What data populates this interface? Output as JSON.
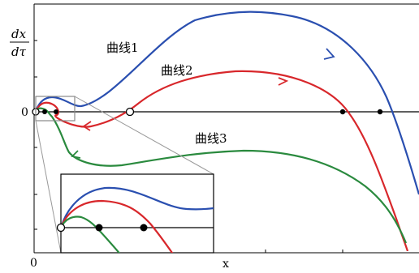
{
  "chart_data": {
    "type": "line",
    "ylabel": {
      "numerator": "dx",
      "denominator": "dτ"
    },
    "xlabel": "x",
    "y_zero_label": "0",
    "x_zero_label": "0",
    "series": [
      {
        "name": "曲线1",
        "color": "#2a4fb0"
      },
      {
        "name": "曲线2",
        "color": "#d8272b"
      },
      {
        "name": "曲线3",
        "color": "#2a8a3e"
      }
    ],
    "fixed_points": [
      {
        "kind": "open",
        "series": "曲线1/2/3",
        "note": "origin"
      },
      {
        "kind": "filled",
        "series": "曲线3"
      },
      {
        "kind": "filled",
        "series": "曲线3"
      },
      {
        "kind": "open",
        "series": "曲线2"
      },
      {
        "kind": "filled",
        "series": "曲线2"
      },
      {
        "kind": "filled",
        "series": "曲线1"
      }
    ],
    "inset": "zoom of region near origin",
    "grid": false
  }
}
